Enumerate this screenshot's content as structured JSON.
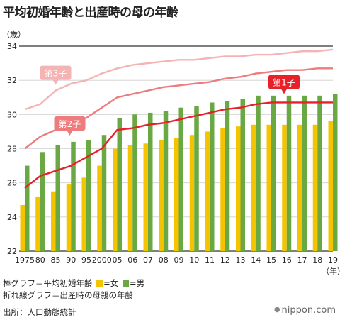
{
  "title": "平均初婚年齢と出産時の母の年齢",
  "y_unit": "（歳）",
  "x_unit": "（年）",
  "legend": {
    "bar_text": "棒グラフ＝平均初婚年齢",
    "line_text": "折れ線グラフ＝出産時の母親の年齢",
    "female_label": "=女",
    "male_label": "=男"
  },
  "source": "出所：人口動態統計",
  "logo": "nippon.com",
  "colors": {
    "female": "#f5c400",
    "male": "#6aa843",
    "first_child": "#e8202a",
    "second_child": "#ee7b7d",
    "third_child": "#f5b3b3"
  },
  "chart_data": {
    "type": "bar",
    "categories": [
      "1975",
      "80",
      "85",
      "90",
      "95",
      "2000",
      "05",
      "06",
      "07",
      "08",
      "09",
      "10",
      "11",
      "12",
      "13",
      "14",
      "15",
      "16",
      "17",
      "18",
      "19"
    ],
    "ylim": [
      22,
      34
    ],
    "yticks": [
      22,
      24,
      26,
      28,
      30,
      32,
      34
    ],
    "grid": "horizontal",
    "series": [
      {
        "name": "=女",
        "kind": "bar",
        "values": [
          24.7,
          25.2,
          25.5,
          25.9,
          26.3,
          27.0,
          28.0,
          28.2,
          28.3,
          28.5,
          28.6,
          28.8,
          29.0,
          29.2,
          29.3,
          29.4,
          29.4,
          29.4,
          29.4,
          29.4,
          29.6
        ]
      },
      {
        "name": "=男",
        "kind": "bar",
        "values": [
          27.0,
          27.8,
          28.2,
          28.4,
          28.5,
          28.8,
          29.8,
          30.0,
          30.1,
          30.2,
          30.4,
          30.5,
          30.7,
          30.8,
          30.9,
          31.1,
          31.1,
          31.1,
          31.1,
          31.1,
          31.2
        ]
      },
      {
        "name": "第1子",
        "kind": "line",
        "values": [
          25.7,
          26.4,
          26.7,
          27.0,
          27.5,
          28.0,
          29.1,
          29.2,
          29.4,
          29.5,
          29.7,
          29.9,
          30.1,
          30.3,
          30.4,
          30.6,
          30.7,
          30.7,
          30.7,
          30.7,
          30.7
        ]
      },
      {
        "name": "第2子",
        "kind": "line",
        "values": [
          28.0,
          28.7,
          29.1,
          29.5,
          29.8,
          30.4,
          31.0,
          31.2,
          31.4,
          31.6,
          31.7,
          31.8,
          31.9,
          32.1,
          32.2,
          32.4,
          32.5,
          32.6,
          32.6,
          32.7,
          32.7
        ]
      },
      {
        "name": "第3子",
        "kind": "line",
        "values": [
          30.3,
          30.6,
          31.4,
          31.8,
          32.0,
          32.4,
          32.7,
          32.9,
          33.0,
          33.1,
          33.2,
          33.2,
          33.3,
          33.4,
          33.4,
          33.5,
          33.5,
          33.6,
          33.7,
          33.7,
          33.8
        ]
      }
    ],
    "annotations": [
      {
        "text": "第3子",
        "series": "第3子",
        "at_category": "85"
      },
      {
        "text": "第2子",
        "series": "第2子",
        "at_category": "85"
      },
      {
        "text": "第1子",
        "series": "第1子",
        "at_category": "15"
      }
    ]
  }
}
